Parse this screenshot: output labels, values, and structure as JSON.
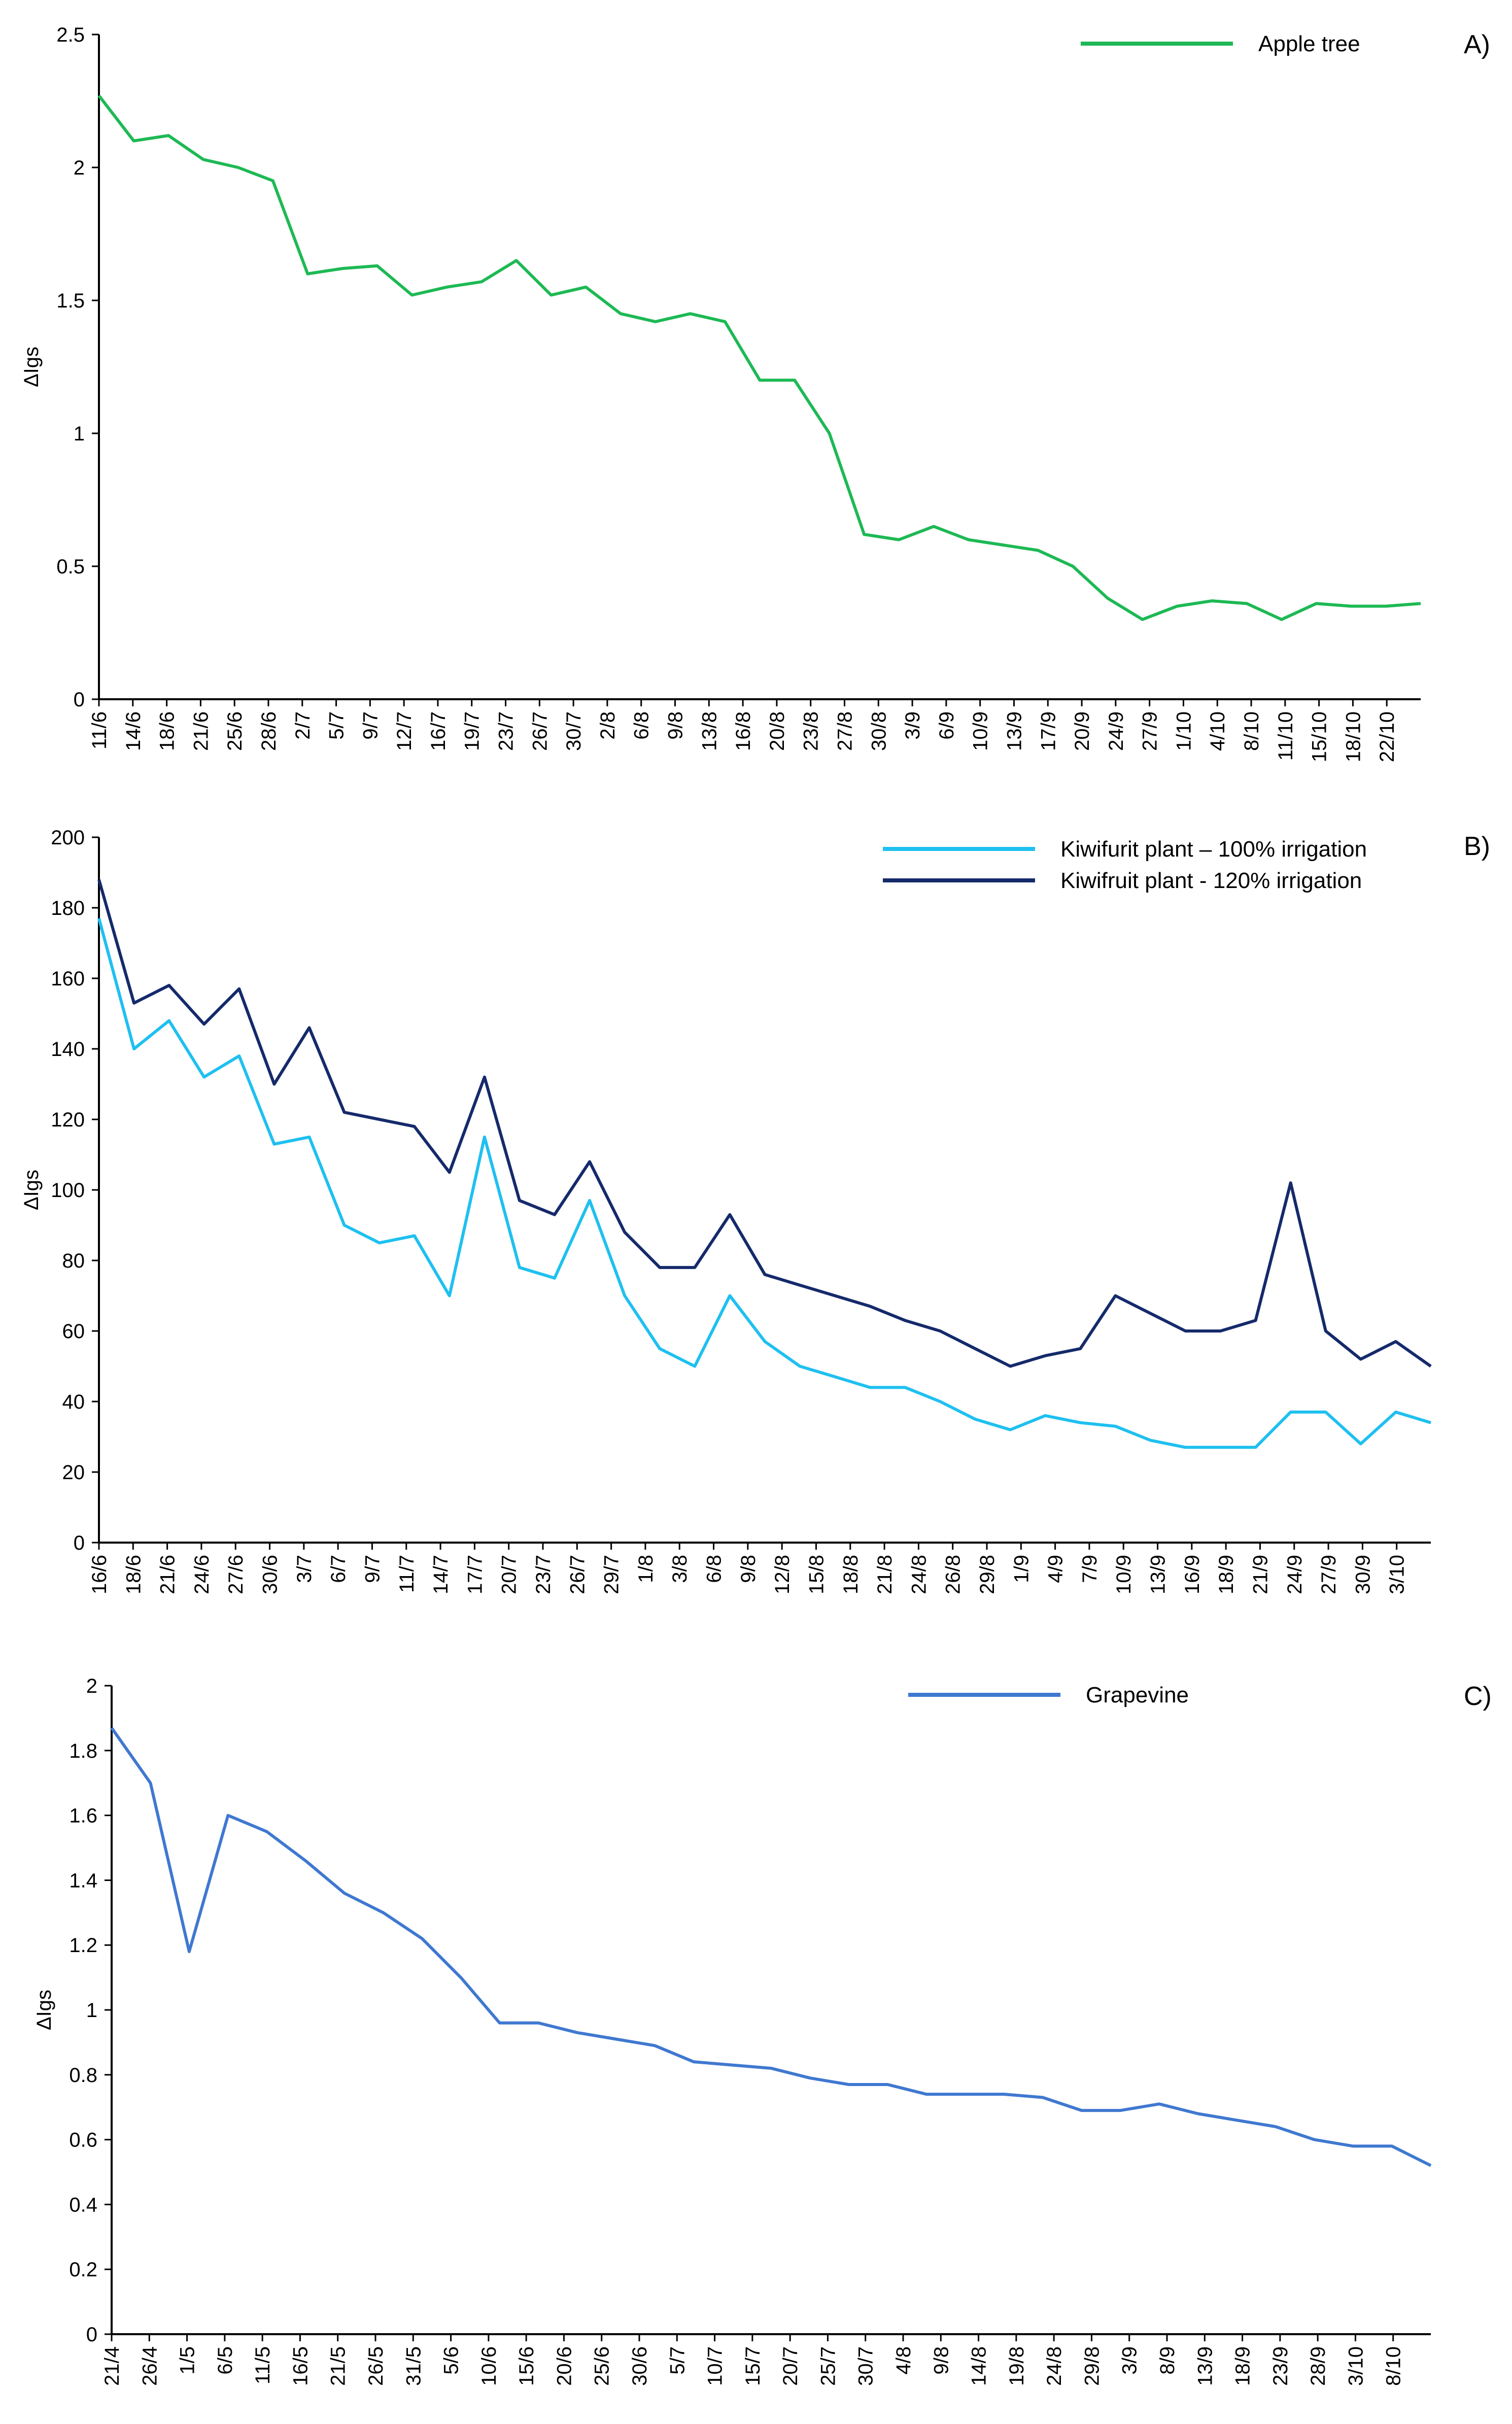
{
  "chart_data": [
    {
      "type": "line",
      "panel_label": "A)",
      "ylabel": "ΔIgs",
      "ylim": [
        0,
        2.5
      ],
      "yticks": [
        "0",
        "0.5",
        "1",
        "1.5",
        "2",
        "2.5"
      ],
      "categories": [
        "11/6",
        "14/6",
        "18/6",
        "21/6",
        "25/6",
        "28/6",
        "2/7",
        "5/7",
        "9/7",
        "12/7",
        "16/7",
        "19/7",
        "23/7",
        "26/7",
        "30/7",
        "2/8",
        "6/8",
        "9/8",
        "13/8",
        "16/8",
        "20/8",
        "23/8",
        "27/8",
        "30/8",
        "3/9",
        "6/9",
        "10/9",
        "13/9",
        "17/9",
        "20/9",
        "24/9",
        "27/9",
        "1/10",
        "4/10",
        "8/10",
        "11/10",
        "15/10",
        "18/10",
        "22/10"
      ],
      "series": [
        {
          "name": "Apple tree",
          "color": "#1db954",
          "values": [
            2.27,
            2.1,
            2.12,
            2.03,
            2.0,
            1.95,
            1.6,
            1.62,
            1.63,
            1.52,
            1.55,
            1.57,
            1.65,
            1.52,
            1.55,
            1.45,
            1.42,
            1.45,
            1.42,
            1.2,
            1.2,
            1.0,
            0.62,
            0.6,
            0.65,
            0.6,
            0.58,
            0.56,
            0.5,
            0.38,
            0.3,
            0.35,
            0.37,
            0.36,
            0.3,
            0.36,
            0.35,
            0.35,
            0.36
          ]
        }
      ]
    },
    {
      "type": "line",
      "panel_label": "B)",
      "ylabel": "ΔIgs",
      "ylim": [
        0,
        200
      ],
      "yticks": [
        "0",
        "20",
        "40",
        "60",
        "80",
        "100",
        "120",
        "140",
        "160",
        "180",
        "200"
      ],
      "categories": [
        "16/6",
        "18/6",
        "21/6",
        "24/6",
        "27/6",
        "30/6",
        "3/7",
        "6/7",
        "9/7",
        "11/7",
        "14/7",
        "17/7",
        "20/7",
        "23/7",
        "26/7",
        "29/7",
        "1/8",
        "3/8",
        "6/8",
        "9/8",
        "12/8",
        "15/8",
        "18/8",
        "21/8",
        "24/8",
        "26/8",
        "29/8",
        "1/9",
        "4/9",
        "7/9",
        "10/9",
        "13/9",
        "16/9",
        "18/9",
        "21/9",
        "24/9",
        "27/9",
        "30/9",
        "3/10"
      ],
      "series": [
        {
          "name": "Kiwifurit plant – 100% irrigation",
          "color": "#1ec0f0",
          "values": [
            177,
            140,
            148,
            132,
            138,
            113,
            115,
            90,
            85,
            87,
            70,
            115,
            78,
            75,
            97,
            70,
            55,
            50,
            70,
            57,
            50,
            47,
            44,
            44,
            40,
            35,
            32,
            36,
            34,
            33,
            29,
            27,
            27,
            27,
            37,
            37,
            28,
            37,
            34
          ]
        },
        {
          "name": "Kiwifruit plant  - 120% irrigation",
          "color": "#152a6b",
          "values": [
            188,
            153,
            158,
            147,
            157,
            130,
            146,
            122,
            120,
            118,
            105,
            132,
            97,
            93,
            108,
            88,
            78,
            78,
            93,
            76,
            73,
            70,
            67,
            63,
            60,
            55,
            50,
            53,
            55,
            70,
            65,
            60,
            60,
            63,
            102,
            60,
            52,
            57,
            50
          ]
        }
      ]
    },
    {
      "type": "line",
      "panel_label": "C)",
      "ylabel": "ΔIgs",
      "ylim": [
        0,
        2
      ],
      "yticks": [
        "0",
        "0.2",
        "0.4",
        "0.6",
        "0.8",
        "1",
        "1.2",
        "1.4",
        "1.6",
        "1.8",
        "2"
      ],
      "categories": [
        "21/4",
        "26/4",
        "1/5",
        "6/5",
        "11/5",
        "16/5",
        "21/5",
        "26/5",
        "31/5",
        "5/6",
        "10/6",
        "15/6",
        "20/6",
        "25/6",
        "30/6",
        "5/7",
        "10/7",
        "15/7",
        "20/7",
        "25/7",
        "30/7",
        "4/8",
        "9/8",
        "14/8",
        "19/8",
        "24/8",
        "29/8",
        "3/9",
        "8/9",
        "13/9",
        "18/9",
        "23/9",
        "28/9",
        "3/10",
        "8/10"
      ],
      "series": [
        {
          "name": "Grapevine",
          "color": "#3f78d0",
          "values": [
            1.87,
            1.7,
            1.18,
            1.6,
            1.55,
            1.46,
            1.36,
            1.3,
            1.22,
            1.1,
            0.96,
            0.96,
            0.93,
            0.91,
            0.89,
            0.84,
            0.83,
            0.82,
            0.79,
            0.77,
            0.77,
            0.74,
            0.74,
            0.74,
            0.73,
            0.69,
            0.69,
            0.71,
            0.68,
            0.66,
            0.64,
            0.6,
            0.58,
            0.58,
            0.52
          ]
        }
      ]
    }
  ]
}
